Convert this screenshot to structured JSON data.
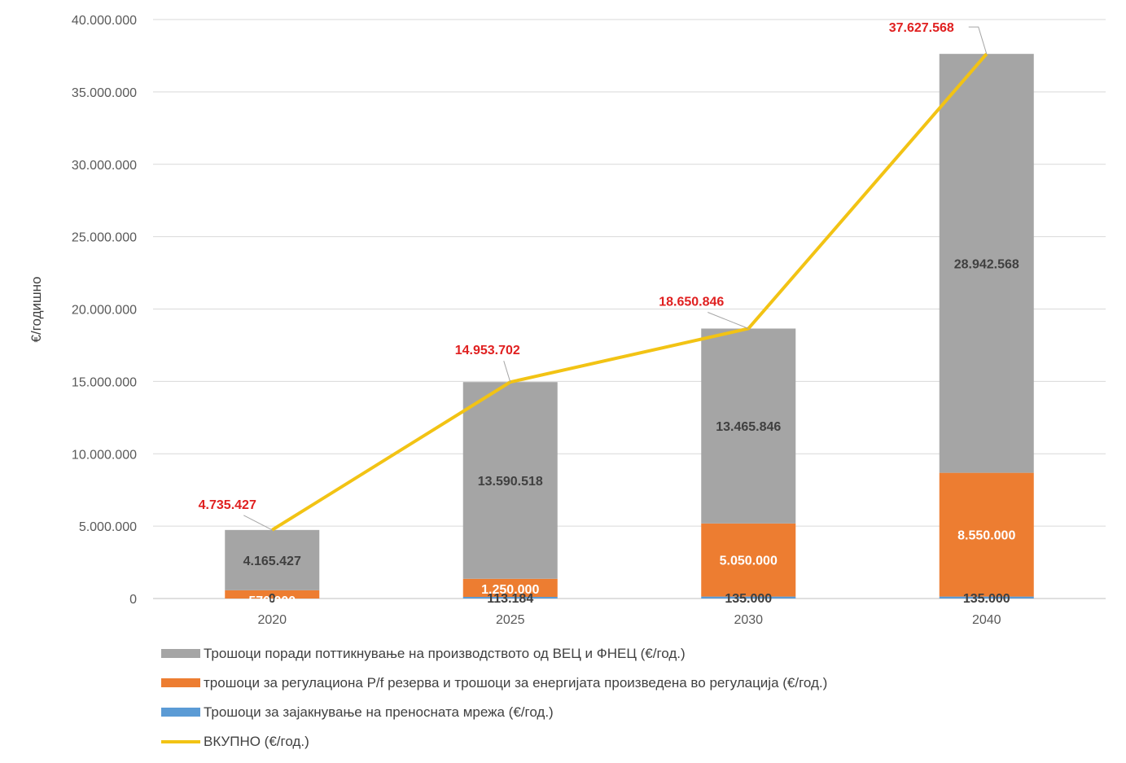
{
  "chart_data": {
    "type": "bar",
    "stacked": true,
    "categories": [
      "2020",
      "2025",
      "2030",
      "2040"
    ],
    "ylabel": "€/годишно",
    "ylim": [
      0,
      40000000
    ],
    "yticks": [
      "0",
      "5.000.000",
      "10.000.000",
      "15.000.000",
      "20.000.000",
      "25.000.000",
      "30.000.000",
      "35.000.000",
      "40.000.000"
    ],
    "grid": true,
    "legend_position": "bottom",
    "series": [
      {
        "name": "Трошоци за зајакнување на преносната мрежа  (€/год.)",
        "color": "#5b9bd5",
        "values": [
          0,
          113184,
          135000,
          135000
        ],
        "labels": [
          "0",
          "113.184",
          "135.000",
          "135.000"
        ],
        "label_color": "#404040"
      },
      {
        "name": "трошоци за регулациона P/f резерва и трошоци за енергијата произведена во регулација (€/год.)",
        "color": "#ed7d31",
        "values": [
          570000,
          1250000,
          5050000,
          8550000
        ],
        "labels": [
          "570.000",
          "1.250.000",
          "5.050.000",
          "8.550.000"
        ],
        "label_color": "#ffffff"
      },
      {
        "name": "Трошоци поради поттикнување на производството од ВЕЦ и ФНЕЦ (€/год.)",
        "color": "#a5a5a5",
        "values": [
          4165427,
          13590518,
          13465846,
          28942568
        ],
        "labels": [
          "4.165.427",
          "13.590.518",
          "13.465.846",
          "28.942.568"
        ],
        "label_color": "#404040"
      }
    ],
    "total_line": {
      "name": "ВКУПНО (€/год.)",
      "color": "#f2c314",
      "label_color": "#e02020",
      "values": [
        4735427,
        14953702,
        18650846,
        37627568
      ],
      "labels": [
        "4.735.427",
        "14.953.702",
        "18.650.846",
        "37.627.568"
      ]
    },
    "legend_order": [
      2,
      1,
      0,
      "total"
    ]
  }
}
